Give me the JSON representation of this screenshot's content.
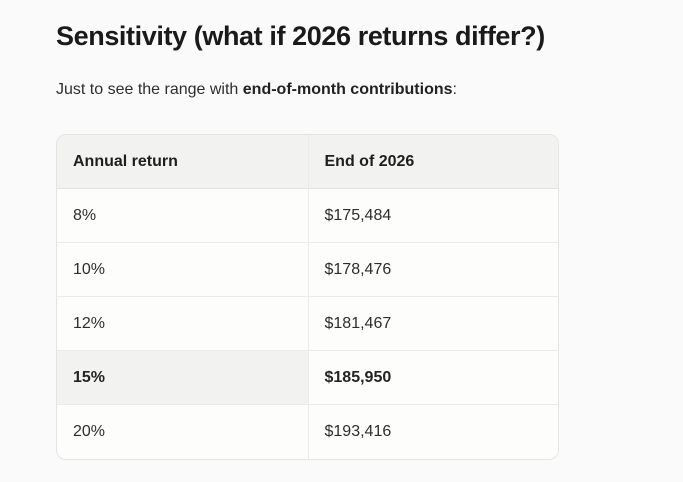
{
  "heading": "Sensitivity (what if 2026 returns differ?)",
  "intro": {
    "prefix": "Just to see the range with ",
    "bold": "end-of-month contributions",
    "suffix": ":"
  },
  "table": {
    "columns": [
      "Annual return",
      "End of 2026"
    ],
    "rows": [
      [
        "8%",
        "$175,484"
      ],
      [
        "10%",
        "$178,476"
      ],
      [
        "12%",
        "$181,467"
      ],
      [
        "15%",
        "$185,950"
      ],
      [
        "20%",
        "$193,416"
      ]
    ],
    "highlight_row_index": 3
  },
  "colors": {
    "page_background": "#fafafa",
    "table_background": "#fdfdfc",
    "header_background": "#f2f2f1",
    "highlight_cell_background": "#f2f2f1",
    "border": "#e4e4e3",
    "heading_text": "#1a1a1a",
    "body_text": "#2e2e2e"
  }
}
